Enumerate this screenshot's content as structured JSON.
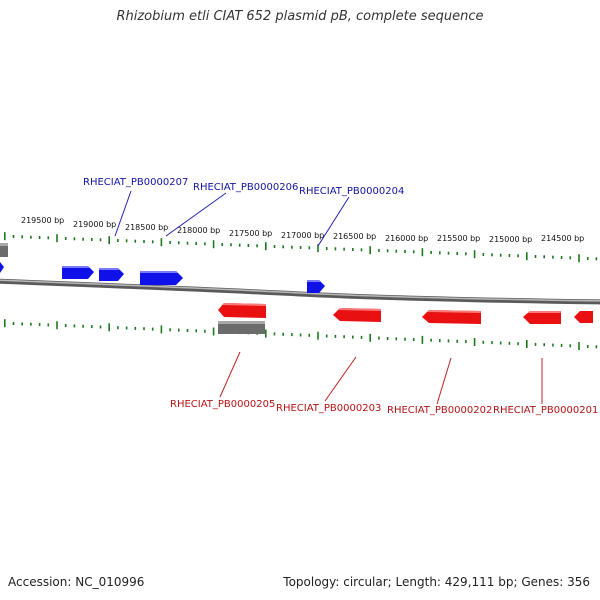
{
  "title": "Rhizobium etli CIAT 652 plasmid pB, complete sequence",
  "footer": {
    "accession": "Accession: NC_010996",
    "stats": "Topology: circular; Length: 429,111 bp; Genes: 356"
  },
  "colors": {
    "forward": "#1010e8",
    "reverse": "#e81010",
    "other": "#6b6b6b",
    "tick": "#1e7a1e",
    "label_forward": "#1414a0",
    "label_reverse": "#b41414"
  },
  "ticks": [
    "219500 bp",
    "219000 bp",
    "218500 bp",
    "218000 bp",
    "217500 bp",
    "217000 bp",
    "216500 bp",
    "216000 bp",
    "215500 bp",
    "215000 bp",
    "214500 bp"
  ],
  "labels_top": [
    "RHECIAT_PB0000207",
    "RHECIAT_PB0000206",
    "RHECIAT_PB0000204"
  ],
  "labels_bottom": [
    "RHECIAT_PB0000205",
    "RHECIAT_PB0000203",
    "RHECIAT_PB0000202",
    "RHECIAT_PB0000201"
  ]
}
